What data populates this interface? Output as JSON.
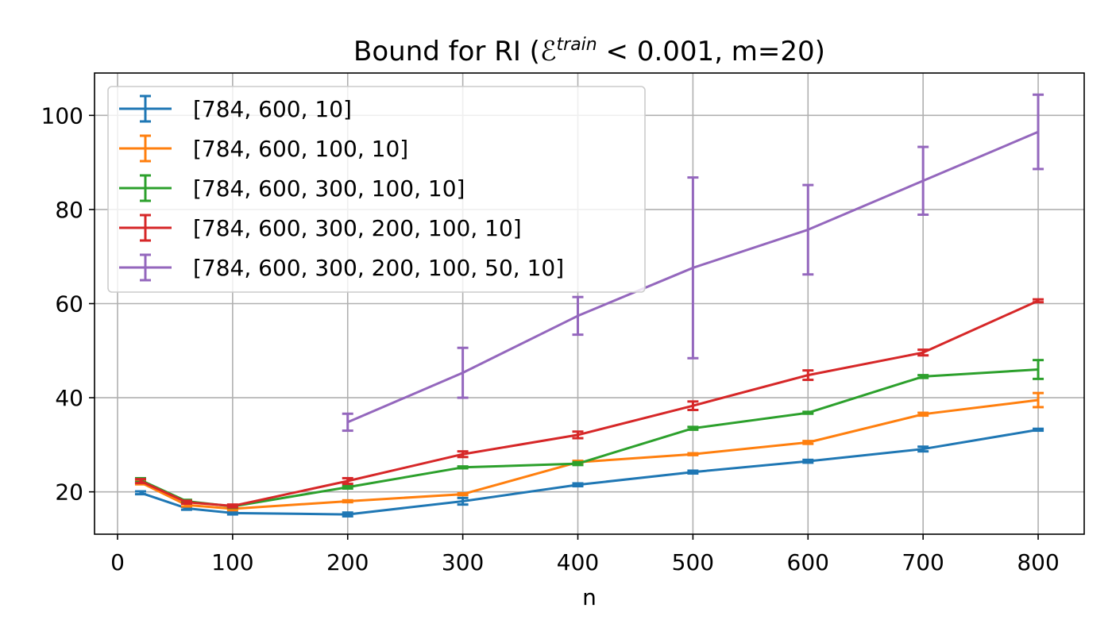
{
  "chart_data": {
    "type": "line",
    "title": "Bound for RI (",
    "title_symbol": "ℰ",
    "title_superscript": "train",
    "title_rest": " < 0.001, m=20)",
    "xlabel": "n",
    "ylabel": "",
    "xlim": [
      -20,
      840
    ],
    "ylim": [
      11,
      109
    ],
    "xticks": [
      0,
      100,
      200,
      300,
      400,
      500,
      600,
      700,
      800
    ],
    "yticks": [
      20,
      40,
      60,
      80,
      100
    ],
    "grid": true,
    "legend_position": "top-left",
    "series": [
      {
        "name": "[784, 600, 10]",
        "color": "#1f77b4",
        "x": [
          20,
          60,
          100,
          200,
          300,
          400,
          500,
          600,
          700,
          800
        ],
        "y": [
          19.8,
          16.5,
          15.5,
          15.2,
          18.0,
          21.5,
          24.2,
          26.5,
          29.1,
          33.2
        ],
        "err": [
          0.3,
          0.3,
          0.3,
          0.4,
          0.7,
          0.3,
          0.3,
          0.3,
          0.5,
          0.2
        ]
      },
      {
        "name": "[784, 600, 100, 10]",
        "color": "#ff7f0e",
        "x": [
          20,
          60,
          100,
          200,
          300,
          400,
          500,
          600,
          700,
          800
        ],
        "y": [
          22.0,
          17.2,
          16.4,
          18.0,
          19.5,
          26.3,
          28.0,
          30.5,
          36.5,
          39.5
        ],
        "err": [
          0.4,
          0.3,
          0.3,
          0.2,
          0.2,
          0.3,
          0.2,
          0.3,
          0.3,
          1.5
        ]
      },
      {
        "name": "[784, 600, 300, 100, 10]",
        "color": "#2ca02c",
        "x": [
          20,
          60,
          100,
          200,
          300,
          400,
          500,
          600,
          700,
          800
        ],
        "y": [
          22.5,
          18.0,
          16.9,
          21.0,
          25.2,
          26.0,
          33.5,
          36.8,
          44.5,
          46.0
        ],
        "err": [
          0.4,
          0.3,
          0.3,
          0.3,
          0.2,
          0.3,
          0.3,
          0.2,
          0.3,
          2.0
        ]
      },
      {
        "name": "[784, 600, 300, 200, 100, 10]",
        "color": "#d62728",
        "x": [
          20,
          60,
          100,
          200,
          300,
          400,
          500,
          600,
          700,
          800
        ],
        "y": [
          22.3,
          17.8,
          17.0,
          22.3,
          28.0,
          32.1,
          38.3,
          44.8,
          49.6,
          60.6
        ],
        "err": [
          0.4,
          0.3,
          0.3,
          0.6,
          0.6,
          0.7,
          0.9,
          1.0,
          0.6,
          0.3
        ]
      },
      {
        "name": "[784, 600, 300, 200, 100, 50, 10]",
        "color": "#9467bd",
        "x": [
          200,
          300,
          400,
          500,
          600,
          700,
          800
        ],
        "y": [
          34.8,
          45.3,
          57.4,
          67.6,
          75.7,
          86.1,
          96.5
        ],
        "err": [
          1.8,
          5.3,
          4.0,
          19.2,
          9.5,
          7.2,
          7.9
        ]
      }
    ]
  }
}
